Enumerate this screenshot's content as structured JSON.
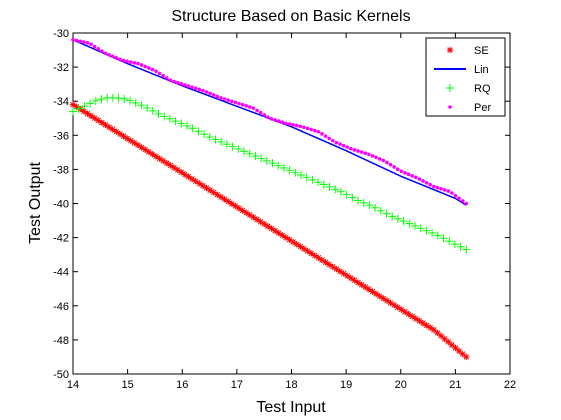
{
  "chart_data": {
    "type": "line",
    "title": "Structure Based on Basic Kernels",
    "xlabel": "Test Input",
    "ylabel": "Test Output",
    "xlim": [
      14,
      22
    ],
    "ylim": [
      -50,
      -30
    ],
    "xticks": [
      14,
      15,
      16,
      17,
      18,
      19,
      20,
      21,
      22
    ],
    "yticks": [
      -30,
      -32,
      -34,
      -36,
      -38,
      -40,
      -42,
      -44,
      -46,
      -48,
      -50
    ],
    "grid": false,
    "legend_position": "top-right",
    "series": [
      {
        "name": "SE",
        "color": "#ff0000",
        "marker": "asterisk",
        "x": [
          14.0,
          14.3,
          14.6,
          14.9,
          15.2,
          15.5,
          15.8,
          16.1,
          16.4,
          16.7,
          17.0,
          17.3,
          17.6,
          17.9,
          18.2,
          18.5,
          18.8,
          19.1,
          19.4,
          19.7,
          20.0,
          20.3,
          20.6,
          20.9,
          21.2
        ],
        "y": [
          -34.2,
          -34.8,
          -35.4,
          -36.0,
          -36.6,
          -37.2,
          -37.8,
          -38.4,
          -39.0,
          -39.6,
          -40.2,
          -40.8,
          -41.4,
          -42.0,
          -42.6,
          -43.2,
          -43.8,
          -44.4,
          -45.0,
          -45.6,
          -46.2,
          -46.8,
          -47.4,
          -48.2,
          -49.0
        ]
      },
      {
        "name": "Lin",
        "color": "#0000ff",
        "marker": "line",
        "x": [
          14.0,
          15.0,
          16.0,
          17.0,
          18.0,
          19.0,
          20.0,
          21.0,
          21.2
        ],
        "y": [
          -30.4,
          -31.8,
          -33.1,
          -34.3,
          -35.5,
          -36.9,
          -38.4,
          -39.7,
          -40.1
        ]
      },
      {
        "name": "RQ",
        "color": "#00ff00",
        "marker": "plus",
        "x": [
          14.0,
          14.2,
          14.4,
          14.6,
          14.8,
          15.0,
          15.3,
          15.6,
          15.9,
          16.2,
          16.5,
          16.8,
          17.1,
          17.4,
          17.7,
          18.0,
          18.3,
          18.6,
          18.9,
          19.2,
          19.5,
          19.8,
          20.1,
          20.4,
          20.7,
          21.0,
          21.2
        ],
        "y": [
          -34.6,
          -34.3,
          -34.0,
          -33.8,
          -33.8,
          -33.9,
          -34.3,
          -34.8,
          -35.2,
          -35.6,
          -36.1,
          -36.5,
          -36.9,
          -37.3,
          -37.7,
          -38.1,
          -38.5,
          -38.9,
          -39.3,
          -39.8,
          -40.2,
          -40.7,
          -41.1,
          -41.5,
          -41.9,
          -42.4,
          -42.7
        ]
      },
      {
        "name": "Per",
        "color": "#ff00ff",
        "marker": "dot",
        "x": [
          14.0,
          14.3,
          14.6,
          14.9,
          15.2,
          15.5,
          15.8,
          16.1,
          16.4,
          16.7,
          17.0,
          17.3,
          17.6,
          17.9,
          18.2,
          18.5,
          18.8,
          19.1,
          19.4,
          19.7,
          20.0,
          20.3,
          20.6,
          20.9,
          21.2
        ],
        "y": [
          -30.4,
          -30.6,
          -31.2,
          -31.6,
          -31.8,
          -32.2,
          -32.8,
          -33.1,
          -33.4,
          -33.8,
          -34.1,
          -34.4,
          -35.0,
          -35.3,
          -35.5,
          -35.8,
          -36.4,
          -36.8,
          -37.1,
          -37.5,
          -38.1,
          -38.5,
          -39.0,
          -39.3,
          -40.0
        ]
      }
    ]
  }
}
